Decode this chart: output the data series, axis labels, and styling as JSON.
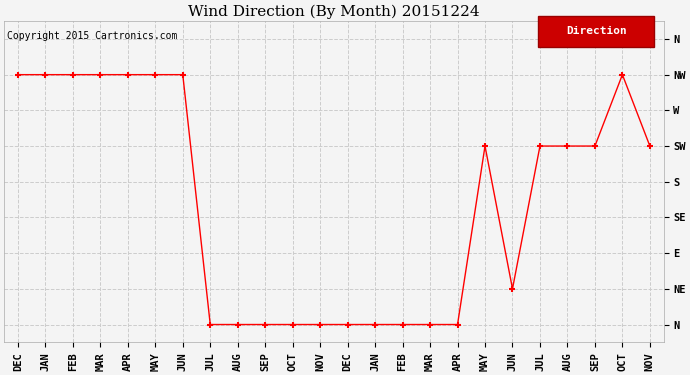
{
  "title": "Wind Direction (By Month) 20151224",
  "copyright": "Copyright 2015 Cartronics.com",
  "legend_label": "Direction",
  "legend_bg": "#cc0000",
  "legend_text_color": "#ffffff",
  "x_labels": [
    "DEC",
    "JAN",
    "FEB",
    "MAR",
    "APR",
    "MAY",
    "JUN",
    "JUL",
    "AUG",
    "SEP",
    "OCT",
    "NOV",
    "DEC",
    "JAN",
    "FEB",
    "MAR",
    "APR",
    "MAY",
    "JUN",
    "JUL",
    "AUG",
    "SEP",
    "OCT",
    "NOV"
  ],
  "y_labels": [
    "N",
    "NE",
    "E",
    "SE",
    "S",
    "SW",
    "W",
    "NW",
    "N"
  ],
  "y_ticks": [
    0,
    1,
    2,
    3,
    4,
    5,
    6,
    7,
    8
  ],
  "data_x": [
    0,
    1,
    2,
    3,
    4,
    5,
    6,
    7,
    8,
    9,
    10,
    11,
    12,
    13,
    14,
    15,
    16,
    17,
    18,
    19,
    20,
    21,
    22,
    23
  ],
  "data_y": [
    7,
    7,
    7,
    7,
    7,
    7,
    7,
    0,
    0,
    0,
    0,
    0,
    0,
    0,
    0,
    0,
    0,
    5,
    1,
    5,
    5,
    5,
    7,
    5
  ],
  "line_color": "#ff0000",
  "marker": "+",
  "marker_size": 5,
  "grid_color": "#cccccc",
  "grid_style": "--",
  "bg_color": "#f4f4f4",
  "plot_bg": "#f4f4f4",
  "title_fontsize": 11,
  "tick_fontsize": 7.5,
  "copyright_fontsize": 7
}
